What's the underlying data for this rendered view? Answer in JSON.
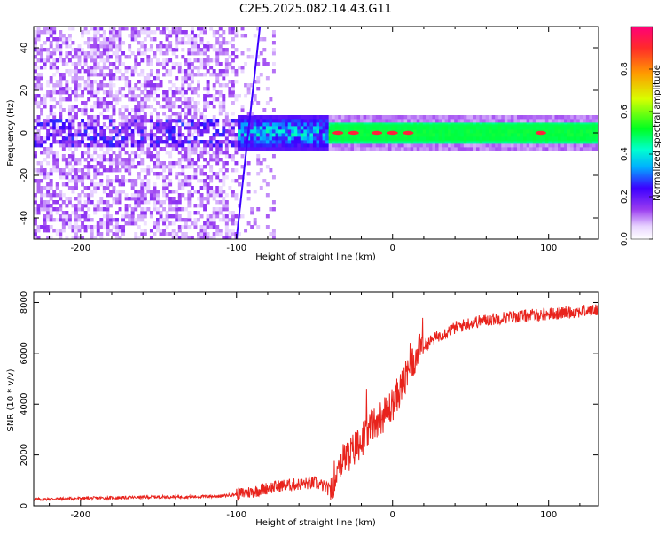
{
  "title": "C2E5.2025.082.14.43.G11",
  "chart_data": [
    {
      "type": "heatmap",
      "xlabel": "Height of straight line (km)",
      "ylabel": "Frequency (Hz)",
      "xlim": [
        -230,
        132
      ],
      "ylim": [
        -50,
        50
      ],
      "xticks": [
        -200,
        -100,
        0,
        100
      ],
      "yticks": [
        -40,
        -20,
        0,
        20,
        40
      ],
      "colorbar": {
        "label": "Normalized spectral amplitude",
        "range": [
          0,
          1
        ],
        "ticks": [
          0.0,
          0.2,
          0.4,
          0.6,
          0.8
        ],
        "tick_labels": [
          "0.0",
          "0.2",
          "0.4",
          "0.6",
          "0.8"
        ],
        "colors": [
          "#ffffff",
          "#e0c8ff",
          "#8a2be2",
          "#3f00ff",
          "#00ffff",
          "#00ff00",
          "#ffff00",
          "#ff7f00",
          "#ff0066"
        ]
      },
      "features": {
        "carrier_line_frequency_hz": 0,
        "noise_region_km": [
          -230,
          -100
        ],
        "transition_region_km": [
          -100,
          -40
        ],
        "strong_peaks_km": [
          -35,
          -25,
          -10,
          0,
          10,
          95
        ],
        "diagonal_streak_km": [
          -100,
          -85
        ]
      }
    },
    {
      "type": "line",
      "xlabel": "Height of straight line (km)",
      "ylabel": "SNR (10 * v/v)",
      "xlim": [
        -230,
        132
      ],
      "ylim": [
        0,
        8400
      ],
      "xticks": [
        -200,
        -100,
        0,
        100
      ],
      "yticks": [
        0,
        2000,
        4000,
        6000,
        8000
      ],
      "series": [
        {
          "color": "#e8231c",
          "x": [
            -230,
            -210,
            -190,
            -170,
            -150,
            -130,
            -110,
            -100,
            -90,
            -80,
            -70,
            -60,
            -50,
            -45,
            -40,
            -35,
            -30,
            -25,
            -20,
            -15,
            -10,
            -5,
            0,
            5,
            10,
            15,
            20,
            30,
            40,
            50,
            60,
            70,
            80,
            90,
            100,
            110,
            120,
            132
          ],
          "values": [
            250,
            280,
            300,
            320,
            350,
            350,
            380,
            450,
            550,
            700,
            800,
            850,
            900,
            800,
            600,
            1600,
            1900,
            2200,
            2600,
            3000,
            3400,
            3600,
            4000,
            4600,
            5200,
            5900,
            6300,
            6700,
            7000,
            7200,
            7300,
            7400,
            7450,
            7500,
            7550,
            7600,
            7650,
            7700
          ]
        }
      ]
    }
  ]
}
